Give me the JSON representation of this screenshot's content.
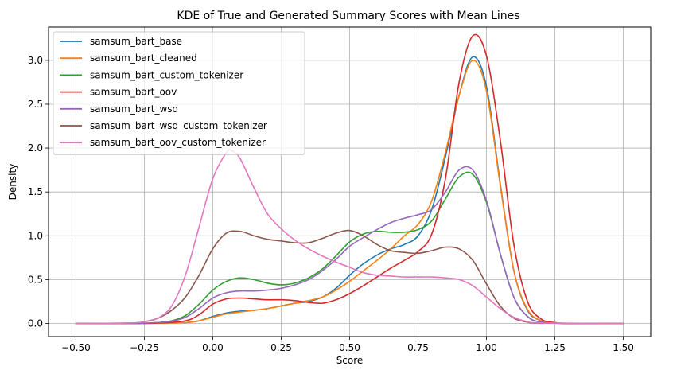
{
  "chart_data": {
    "type": "line",
    "title": "KDE of True and Generated Summary Scores with Mean Lines",
    "xlabel": "Score",
    "ylabel": "Density",
    "xlim": [
      -0.6,
      1.6
    ],
    "ylim": [
      -0.15,
      3.38
    ],
    "xticks": [
      -0.5,
      -0.25,
      0.0,
      0.25,
      0.5,
      0.75,
      1.0,
      1.25,
      1.5
    ],
    "xtick_labels": [
      "−0.50",
      "−0.25",
      "0.00",
      "0.25",
      "0.50",
      "0.75",
      "1.00",
      "1.25",
      "1.50"
    ],
    "yticks": [
      0.0,
      0.5,
      1.0,
      1.5,
      2.0,
      2.5,
      3.0
    ],
    "ytick_labels": [
      "0.0",
      "0.5",
      "1.0",
      "1.5",
      "2.0",
      "2.5",
      "3.0"
    ],
    "grid": true,
    "legend": "top-left",
    "series": [
      {
        "name": "samsum_bart_base",
        "color": "#1f77b4",
        "x": [
          -0.5,
          -0.3,
          -0.2,
          -0.1,
          -0.05,
          0.0,
          0.05,
          0.1,
          0.15,
          0.2,
          0.25,
          0.3,
          0.35,
          0.4,
          0.45,
          0.5,
          0.55,
          0.6,
          0.65,
          0.7,
          0.75,
          0.8,
          0.85,
          0.9,
          0.95,
          1.0,
          1.05,
          1.1,
          1.15,
          1.2,
          1.25,
          1.35,
          1.5
        ],
        "y": [
          0,
          0,
          0.002,
          0.01,
          0.03,
          0.08,
          0.12,
          0.14,
          0.15,
          0.17,
          0.2,
          0.23,
          0.25,
          0.3,
          0.4,
          0.55,
          0.68,
          0.78,
          0.85,
          0.9,
          1.0,
          1.3,
          1.9,
          2.6,
          3.04,
          2.7,
          1.6,
          0.6,
          0.15,
          0.03,
          0.005,
          0,
          0
        ]
      },
      {
        "name": "samsum_bart_cleaned",
        "color": "#ff7f0e",
        "x": [
          -0.5,
          -0.3,
          -0.2,
          -0.1,
          -0.05,
          0.0,
          0.05,
          0.1,
          0.15,
          0.2,
          0.25,
          0.3,
          0.35,
          0.4,
          0.45,
          0.5,
          0.55,
          0.6,
          0.65,
          0.7,
          0.75,
          0.8,
          0.85,
          0.9,
          0.95,
          1.0,
          1.05,
          1.1,
          1.15,
          1.2,
          1.25,
          1.35,
          1.5
        ],
        "y": [
          0,
          0,
          0.002,
          0.01,
          0.03,
          0.07,
          0.11,
          0.13,
          0.15,
          0.17,
          0.2,
          0.23,
          0.26,
          0.3,
          0.38,
          0.48,
          0.6,
          0.72,
          0.85,
          1.0,
          1.13,
          1.4,
          1.95,
          2.6,
          3.0,
          2.65,
          1.58,
          0.6,
          0.16,
          0.03,
          0.005,
          0,
          0
        ]
      },
      {
        "name": "samsum_bart_custom_tokenizer",
        "color": "#2ca02c",
        "x": [
          -0.5,
          -0.3,
          -0.2,
          -0.15,
          -0.1,
          -0.05,
          0.0,
          0.05,
          0.1,
          0.15,
          0.2,
          0.25,
          0.3,
          0.35,
          0.4,
          0.45,
          0.5,
          0.55,
          0.6,
          0.65,
          0.7,
          0.75,
          0.8,
          0.85,
          0.9,
          0.95,
          1.0,
          1.05,
          1.1,
          1.15,
          1.2,
          1.3,
          1.5
        ],
        "y": [
          0,
          0,
          0.01,
          0.03,
          0.09,
          0.22,
          0.38,
          0.48,
          0.52,
          0.5,
          0.46,
          0.44,
          0.46,
          0.52,
          0.62,
          0.77,
          0.93,
          1.02,
          1.05,
          1.04,
          1.04,
          1.07,
          1.17,
          1.42,
          1.67,
          1.7,
          1.38,
          0.8,
          0.3,
          0.08,
          0.015,
          0,
          0
        ]
      },
      {
        "name": "samsum_bart_oov",
        "color": "#d62728",
        "x": [
          -0.5,
          -0.3,
          -0.2,
          -0.1,
          -0.05,
          0.0,
          0.05,
          0.1,
          0.15,
          0.2,
          0.25,
          0.3,
          0.35,
          0.4,
          0.45,
          0.5,
          0.55,
          0.6,
          0.65,
          0.7,
          0.75,
          0.8,
          0.85,
          0.9,
          0.95,
          1.0,
          1.05,
          1.1,
          1.15,
          1.2,
          1.25,
          1.3,
          1.5
        ],
        "y": [
          0,
          0,
          0.005,
          0.03,
          0.1,
          0.22,
          0.28,
          0.29,
          0.28,
          0.27,
          0.27,
          0.26,
          0.24,
          0.23,
          0.27,
          0.34,
          0.43,
          0.53,
          0.63,
          0.72,
          0.82,
          1.02,
          1.65,
          2.75,
          3.28,
          3.05,
          2.1,
          0.9,
          0.25,
          0.05,
          0.01,
          0,
          0
        ]
      },
      {
        "name": "samsum_bart_wsd",
        "color": "#9467bd",
        "x": [
          -0.5,
          -0.3,
          -0.2,
          -0.15,
          -0.1,
          -0.05,
          0.0,
          0.05,
          0.1,
          0.15,
          0.2,
          0.25,
          0.3,
          0.35,
          0.4,
          0.45,
          0.5,
          0.55,
          0.6,
          0.65,
          0.7,
          0.75,
          0.8,
          0.85,
          0.9,
          0.95,
          1.0,
          1.05,
          1.1,
          1.15,
          1.2,
          1.3,
          1.5
        ],
        "y": [
          0,
          0,
          0.01,
          0.025,
          0.07,
          0.17,
          0.29,
          0.35,
          0.37,
          0.37,
          0.38,
          0.4,
          0.44,
          0.5,
          0.6,
          0.73,
          0.88,
          0.98,
          1.07,
          1.15,
          1.2,
          1.24,
          1.3,
          1.5,
          1.75,
          1.75,
          1.4,
          0.8,
          0.3,
          0.08,
          0.015,
          0,
          0
        ]
      },
      {
        "name": "samsum_bart_wsd_custom_tokenizer",
        "color": "#8c564b",
        "x": [
          -0.5,
          -0.3,
          -0.25,
          -0.2,
          -0.15,
          -0.1,
          -0.05,
          0.0,
          0.05,
          0.1,
          0.15,
          0.2,
          0.25,
          0.3,
          0.35,
          0.4,
          0.45,
          0.5,
          0.55,
          0.6,
          0.65,
          0.7,
          0.75,
          0.8,
          0.85,
          0.9,
          0.95,
          1.0,
          1.05,
          1.1,
          1.15,
          1.2,
          1.5
        ],
        "y": [
          0,
          0.005,
          0.02,
          0.06,
          0.15,
          0.3,
          0.55,
          0.85,
          1.03,
          1.05,
          1.0,
          0.96,
          0.94,
          0.92,
          0.92,
          0.97,
          1.03,
          1.06,
          1.0,
          0.9,
          0.83,
          0.81,
          0.8,
          0.83,
          0.87,
          0.85,
          0.72,
          0.45,
          0.2,
          0.06,
          0.015,
          0.003,
          0
        ]
      },
      {
        "name": "samsum_bart_oov_custom_tokenizer",
        "color": "#e377c2",
        "x": [
          -0.5,
          -0.3,
          -0.25,
          -0.2,
          -0.15,
          -0.1,
          -0.05,
          0.0,
          0.05,
          0.07,
          0.1,
          0.15,
          0.2,
          0.25,
          0.3,
          0.35,
          0.4,
          0.45,
          0.5,
          0.55,
          0.6,
          0.65,
          0.7,
          0.75,
          0.8,
          0.85,
          0.9,
          0.95,
          1.0,
          1.05,
          1.1,
          1.15,
          1.2,
          1.5
        ],
        "y": [
          0,
          0.005,
          0.02,
          0.06,
          0.2,
          0.55,
          1.1,
          1.65,
          1.95,
          1.97,
          1.88,
          1.55,
          1.25,
          1.08,
          0.95,
          0.85,
          0.77,
          0.7,
          0.64,
          0.58,
          0.55,
          0.54,
          0.53,
          0.53,
          0.53,
          0.52,
          0.5,
          0.43,
          0.3,
          0.17,
          0.07,
          0.02,
          0.005,
          0
        ]
      }
    ]
  }
}
